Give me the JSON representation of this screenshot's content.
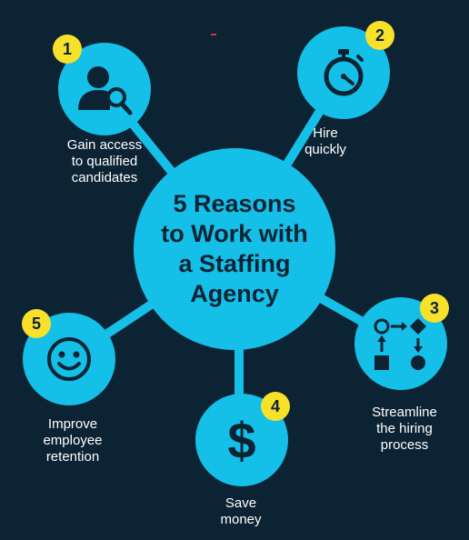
{
  "title": "5 Reasons\nto Work with\na Staffing\nAgency",
  "colors": {
    "background": "#0c2333",
    "accent": "#14bfe8",
    "badge": "#f7e12b",
    "text": "#ffffff"
  },
  "reasons": [
    {
      "number": "1",
      "label": "Gain access\nto qualified\ncandidates",
      "icon": "user-search-icon"
    },
    {
      "number": "2",
      "label": "Hire\nquickly",
      "icon": "stopwatch-icon"
    },
    {
      "number": "3",
      "label": "Streamline\nthe hiring\nprocess",
      "icon": "process-flow-icon"
    },
    {
      "number": "4",
      "label": "Save\nmoney",
      "icon": "dollar-icon"
    },
    {
      "number": "5",
      "label": "Improve\nemployee\nretention",
      "icon": "smiley-icon"
    }
  ]
}
